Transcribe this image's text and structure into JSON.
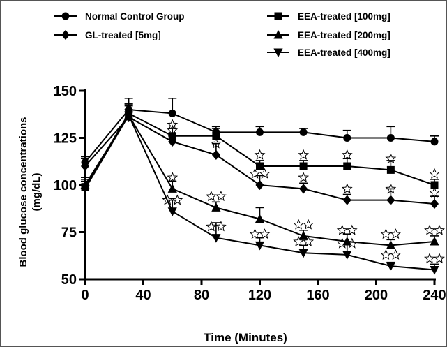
{
  "chart_data": {
    "type": "line",
    "xlabel": "Time (Minutes)",
    "ylabel": "Blood glucose concentrations (mg/dL)",
    "ylabel_lines": [
      "Blood glucose concentrations",
      "(mg/dL)"
    ],
    "xlim": [
      0,
      240
    ],
    "ylim": [
      50,
      150
    ],
    "x_ticks": [
      0,
      40,
      80,
      120,
      160,
      200,
      240
    ],
    "y_ticks": [
      50,
      75,
      100,
      125,
      150
    ],
    "x_tick_labels": [
      "0",
      "40",
      "80",
      "120",
      "160",
      "200",
      "240"
    ],
    "y_tick_labels": [
      "50",
      "75",
      "100",
      "125",
      "150"
    ],
    "x": [
      0,
      30,
      60,
      90,
      120,
      150,
      180,
      210,
      240
    ],
    "legend_position": "top",
    "grid": false,
    "series": [
      {
        "name": "Normal Control Group",
        "marker": "circle",
        "values": [
          112,
          140,
          138,
          128,
          128,
          128,
          125,
          125,
          123
        ],
        "errors": [
          3,
          6,
          8,
          3,
          3,
          2,
          4,
          6,
          3
        ],
        "stars": [
          0,
          0,
          0,
          0,
          0,
          0,
          0,
          0,
          0
        ]
      },
      {
        "name": "EEA-treated [100mg]",
        "marker": "square",
        "values": [
          99,
          138,
          126,
          126,
          110,
          110,
          110,
          108,
          100
        ],
        "errors": [
          4,
          5,
          4,
          4,
          3,
          3,
          4,
          5,
          3
        ],
        "stars": [
          0,
          0,
          1,
          0,
          1,
          1,
          1,
          1,
          1
        ]
      },
      {
        "name": "GL-treated [5mg]",
        "marker": "diamond",
        "values": [
          110,
          136,
          123,
          116,
          100,
          98,
          92,
          92,
          90
        ],
        "errors": [
          4,
          4,
          3,
          6,
          5,
          3,
          3,
          6,
          4
        ],
        "stars": [
          0,
          0,
          1,
          1,
          2,
          1,
          1,
          1,
          1
        ]
      },
      {
        "name": "EEA-treated [200mg]",
        "marker": "triangle-up",
        "values": [
          100,
          137,
          98,
          88,
          82,
          73,
          70,
          68,
          70
        ],
        "errors": [
          4,
          5,
          4,
          3,
          6,
          3,
          4,
          3,
          3
        ],
        "stars": [
          0,
          0,
          1,
          2,
          0,
          2,
          2,
          2,
          2
        ]
      },
      {
        "name": "EEA-treated [400mg]",
        "marker": "triangle-down",
        "values": [
          98,
          137,
          86,
          72,
          68,
          64,
          63,
          57,
          55
        ],
        "errors": [
          4,
          6,
          6,
          8,
          4,
          4,
          7,
          2,
          3
        ],
        "stars": [
          0,
          0,
          2,
          2,
          2,
          2,
          2,
          2,
          2
        ]
      }
    ]
  }
}
